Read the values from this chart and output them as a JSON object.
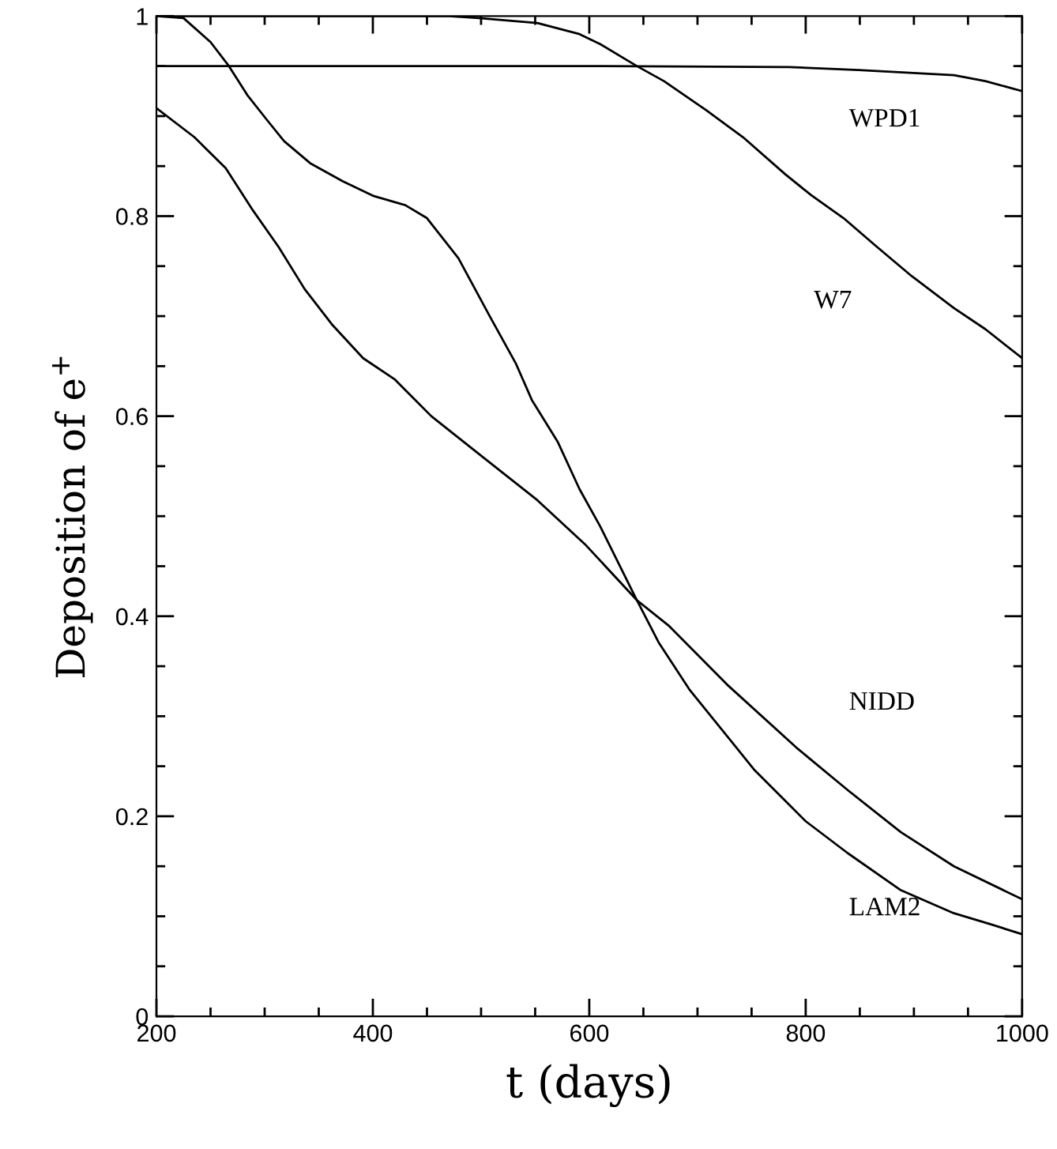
{
  "chart_data": {
    "type": "line",
    "xlabel": "t (days)",
    "ylabel": "Deposition of e$^{+}$",
    "xlim": [
      200,
      1000
    ],
    "ylim": [
      0,
      1
    ],
    "xticks": [
      200,
      {
        "value": 250,
        "label": null
      },
      {
        "value": 300,
        "label": null
      },
      {
        "value": 350,
        "label": null
      },
      400,
      {
        "value": 450,
        "label": null
      },
      {
        "value": 500,
        "label": null
      },
      {
        "value": 550,
        "label": null
      },
      600,
      {
        "value": 650,
        "label": null
      },
      {
        "value": 700,
        "label": null
      },
      {
        "value": 750,
        "label": null
      },
      800,
      {
        "value": 850,
        "label": null
      },
      {
        "value": 900,
        "label": null
      },
      {
        "value": 950,
        "label": null
      },
      1000
    ],
    "yticks": [
      0,
      {
        "value": 0.05,
        "label": null
      },
      {
        "value": 0.1,
        "label": null
      },
      {
        "value": 0.15,
        "label": null
      },
      0.2,
      {
        "value": 0.25,
        "label": null
      },
      {
        "value": 0.3,
        "label": null
      },
      {
        "value": 0.35,
        "label": null
      },
      0.4,
      {
        "value": 0.45,
        "label": null
      },
      {
        "value": 0.5,
        "label": null
      },
      {
        "value": 0.55,
        "label": null
      },
      0.6,
      {
        "value": 0.65,
        "label": null
      },
      {
        "value": 0.7,
        "label": null
      },
      {
        "value": 0.75,
        "label": null
      },
      0.8,
      {
        "value": 0.85,
        "label": null
      },
      {
        "value": 0.9,
        "label": null
      },
      {
        "value": 0.95,
        "label": null
      },
      1
    ],
    "grid": false,
    "legend": false,
    "marker": "none",
    "line_style": "solid",
    "series": [
      {
        "name": "WPD1",
        "color": "#000000",
        "x": [
          200,
          400,
          600,
          785,
          849,
          937,
          966,
          1000
        ],
        "values": [
          0.95,
          0.95,
          0.95,
          0.949,
          0.946,
          0.941,
          0.935,
          0.925
        ]
      },
      {
        "name": "W7",
        "color": "#000000",
        "x": [
          200,
          300,
          400,
          470,
          498,
          552,
          591,
          610,
          644,
          669,
          708,
          742,
          781,
          805,
          835,
          864,
          898,
          937,
          966,
          1000
        ],
        "values": [
          1.0,
          1.0,
          1.0,
          1.0,
          0.998,
          0.993,
          0.982,
          0.972,
          0.95,
          0.935,
          0.906,
          0.879,
          0.842,
          0.821,
          0.798,
          0.771,
          0.74,
          0.708,
          0.687,
          0.658
        ]
      },
      {
        "name": "NIDD",
        "color": "#000000",
        "x": [
          200,
          235,
          264,
          289,
          313,
          337,
          362,
          391,
          420,
          454,
          503,
          552,
          596,
          644,
          674,
          727,
          791,
          839,
          888,
          937,
          1000
        ],
        "values": [
          0.908,
          0.879,
          0.848,
          0.806,
          0.769,
          0.727,
          0.692,
          0.658,
          0.637,
          0.6,
          0.558,
          0.516,
          0.472,
          0.416,
          0.39,
          0.332,
          0.269,
          0.226,
          0.184,
          0.15,
          0.117
        ]
      },
      {
        "name": "LAM2",
        "color": "#000000",
        "x": [
          200,
          225,
          250,
          267,
          284,
          303,
          318,
          342,
          372,
          401,
          430,
          450,
          479,
          508,
          532,
          547,
          571,
          591,
          610,
          644,
          664,
          693,
          732,
          752,
          800,
          839,
          888,
          937,
          971,
          1000
        ],
        "values": [
          1.0,
          0.998,
          0.974,
          0.95,
          0.921,
          0.895,
          0.875,
          0.853,
          0.835,
          0.82,
          0.811,
          0.798,
          0.758,
          0.7,
          0.653,
          0.616,
          0.574,
          0.527,
          0.49,
          0.416,
          0.374,
          0.326,
          0.274,
          0.247,
          0.195,
          0.163,
          0.126,
          0.103,
          0.092,
          0.082
        ]
      }
    ]
  }
}
